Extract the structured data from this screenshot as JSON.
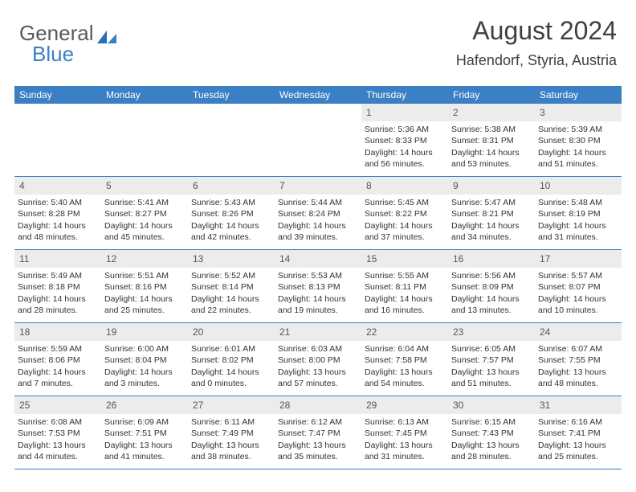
{
  "logo": {
    "text1": "General",
    "text2": "Blue"
  },
  "header": {
    "title": "August 2024",
    "location": "Hafendorf, Styria, Austria"
  },
  "colors": {
    "accent": "#3b7fc4",
    "header_bg": "#3b7fc4",
    "daynum_bg": "#ececec",
    "text": "#333333",
    "title_text": "#404040"
  },
  "dayNames": [
    "Sunday",
    "Monday",
    "Tuesday",
    "Wednesday",
    "Thursday",
    "Friday",
    "Saturday"
  ],
  "weeks": [
    [
      null,
      null,
      null,
      null,
      {
        "n": "1",
        "sr": "5:36 AM",
        "ss": "8:33 PM",
        "dl": "14 hours and 56 minutes."
      },
      {
        "n": "2",
        "sr": "5:38 AM",
        "ss": "8:31 PM",
        "dl": "14 hours and 53 minutes."
      },
      {
        "n": "3",
        "sr": "5:39 AM",
        "ss": "8:30 PM",
        "dl": "14 hours and 51 minutes."
      }
    ],
    [
      {
        "n": "4",
        "sr": "5:40 AM",
        "ss": "8:28 PM",
        "dl": "14 hours and 48 minutes."
      },
      {
        "n": "5",
        "sr": "5:41 AM",
        "ss": "8:27 PM",
        "dl": "14 hours and 45 minutes."
      },
      {
        "n": "6",
        "sr": "5:43 AM",
        "ss": "8:26 PM",
        "dl": "14 hours and 42 minutes."
      },
      {
        "n": "7",
        "sr": "5:44 AM",
        "ss": "8:24 PM",
        "dl": "14 hours and 39 minutes."
      },
      {
        "n": "8",
        "sr": "5:45 AM",
        "ss": "8:22 PM",
        "dl": "14 hours and 37 minutes."
      },
      {
        "n": "9",
        "sr": "5:47 AM",
        "ss": "8:21 PM",
        "dl": "14 hours and 34 minutes."
      },
      {
        "n": "10",
        "sr": "5:48 AM",
        "ss": "8:19 PM",
        "dl": "14 hours and 31 minutes."
      }
    ],
    [
      {
        "n": "11",
        "sr": "5:49 AM",
        "ss": "8:18 PM",
        "dl": "14 hours and 28 minutes."
      },
      {
        "n": "12",
        "sr": "5:51 AM",
        "ss": "8:16 PM",
        "dl": "14 hours and 25 minutes."
      },
      {
        "n": "13",
        "sr": "5:52 AM",
        "ss": "8:14 PM",
        "dl": "14 hours and 22 minutes."
      },
      {
        "n": "14",
        "sr": "5:53 AM",
        "ss": "8:13 PM",
        "dl": "14 hours and 19 minutes."
      },
      {
        "n": "15",
        "sr": "5:55 AM",
        "ss": "8:11 PM",
        "dl": "14 hours and 16 minutes."
      },
      {
        "n": "16",
        "sr": "5:56 AM",
        "ss": "8:09 PM",
        "dl": "14 hours and 13 minutes."
      },
      {
        "n": "17",
        "sr": "5:57 AM",
        "ss": "8:07 PM",
        "dl": "14 hours and 10 minutes."
      }
    ],
    [
      {
        "n": "18",
        "sr": "5:59 AM",
        "ss": "8:06 PM",
        "dl": "14 hours and 7 minutes."
      },
      {
        "n": "19",
        "sr": "6:00 AM",
        "ss": "8:04 PM",
        "dl": "14 hours and 3 minutes."
      },
      {
        "n": "20",
        "sr": "6:01 AM",
        "ss": "8:02 PM",
        "dl": "14 hours and 0 minutes."
      },
      {
        "n": "21",
        "sr": "6:03 AM",
        "ss": "8:00 PM",
        "dl": "13 hours and 57 minutes."
      },
      {
        "n": "22",
        "sr": "6:04 AM",
        "ss": "7:58 PM",
        "dl": "13 hours and 54 minutes."
      },
      {
        "n": "23",
        "sr": "6:05 AM",
        "ss": "7:57 PM",
        "dl": "13 hours and 51 minutes."
      },
      {
        "n": "24",
        "sr": "6:07 AM",
        "ss": "7:55 PM",
        "dl": "13 hours and 48 minutes."
      }
    ],
    [
      {
        "n": "25",
        "sr": "6:08 AM",
        "ss": "7:53 PM",
        "dl": "13 hours and 44 minutes."
      },
      {
        "n": "26",
        "sr": "6:09 AM",
        "ss": "7:51 PM",
        "dl": "13 hours and 41 minutes."
      },
      {
        "n": "27",
        "sr": "6:11 AM",
        "ss": "7:49 PM",
        "dl": "13 hours and 38 minutes."
      },
      {
        "n": "28",
        "sr": "6:12 AM",
        "ss": "7:47 PM",
        "dl": "13 hours and 35 minutes."
      },
      {
        "n": "29",
        "sr": "6:13 AM",
        "ss": "7:45 PM",
        "dl": "13 hours and 31 minutes."
      },
      {
        "n": "30",
        "sr": "6:15 AM",
        "ss": "7:43 PM",
        "dl": "13 hours and 28 minutes."
      },
      {
        "n": "31",
        "sr": "6:16 AM",
        "ss": "7:41 PM",
        "dl": "13 hours and 25 minutes."
      }
    ]
  ],
  "labels": {
    "sunrise": "Sunrise:",
    "sunset": "Sunset:",
    "daylight": "Daylight:"
  }
}
